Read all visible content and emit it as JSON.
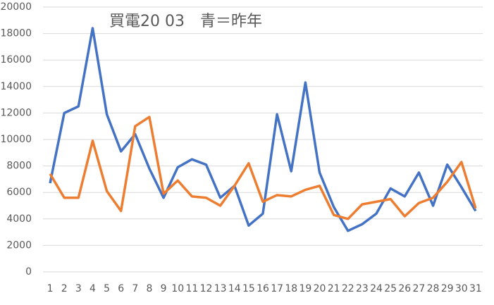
{
  "chart_data": {
    "type": "line",
    "title": "買電20 03　青＝昨年",
    "categories": [
      "1",
      "2",
      "3",
      "4",
      "5",
      "6",
      "7",
      "8",
      "9",
      "10",
      "11",
      "12",
      "13",
      "14",
      "15",
      "16",
      "17",
      "18",
      "19",
      "20",
      "21",
      "22",
      "23",
      "24",
      "25",
      "26",
      "27",
      "28",
      "29",
      "30",
      "31"
    ],
    "series": [
      {
        "color": "#4472c4",
        "values": [
          6700,
          12000,
          12500,
          18400,
          11900,
          9100,
          10400,
          7800,
          5600,
          7900,
          8500,
          8100,
          5600,
          6500,
          3500,
          4400,
          11900,
          7600,
          14300,
          7500,
          4900,
          3100,
          3600,
          4400,
          6300,
          5700,
          7500,
          5000,
          8100,
          6400,
          4600
        ]
      },
      {
        "color": "#ed7d31",
        "values": [
          7400,
          5600,
          5600,
          9900,
          6100,
          4600,
          11000,
          11700,
          5900,
          6900,
          5700,
          5600,
          5000,
          6500,
          8200,
          5300,
          5800,
          5700,
          6200,
          6500,
          4300,
          4000,
          5100,
          5300,
          5500,
          4200,
          5200,
          5600,
          6800,
          8300,
          4800
        ]
      }
    ],
    "ylim": [
      0,
      20000
    ],
    "yticks": [
      0,
      2000,
      4000,
      6000,
      8000,
      10000,
      12000,
      14000,
      16000,
      18000,
      20000
    ],
    "grid": true
  }
}
